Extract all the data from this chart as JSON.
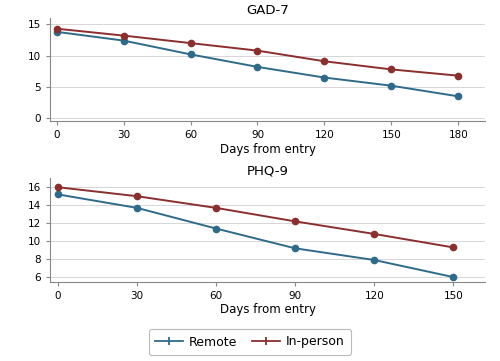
{
  "gad7": {
    "title": "GAD-7",
    "xlabel": "Days from entry",
    "remote_x": [
      0,
      30,
      60,
      90,
      120,
      150,
      180
    ],
    "remote_y": [
      13.8,
      12.4,
      10.2,
      8.2,
      6.5,
      5.2,
      3.5
    ],
    "inperson_x": [
      0,
      30,
      60,
      90,
      120,
      150,
      180
    ],
    "inperson_y": [
      14.3,
      13.2,
      12.0,
      10.8,
      9.1,
      7.8,
      6.8
    ],
    "ylim": [
      -0.5,
      16
    ],
    "yticks": [
      0,
      5,
      10,
      15
    ],
    "xlim": [
      -3,
      192
    ],
    "xticks": [
      0,
      30,
      60,
      90,
      120,
      150,
      180
    ]
  },
  "phq9": {
    "title": "PHQ-9",
    "xlabel": "Days from entry",
    "remote_x": [
      0,
      30,
      60,
      90,
      120,
      150
    ],
    "remote_y": [
      15.2,
      13.7,
      11.4,
      9.2,
      7.9,
      6.0
    ],
    "inperson_x": [
      0,
      30,
      60,
      90,
      120,
      150
    ],
    "inperson_y": [
      16.0,
      15.0,
      13.7,
      12.2,
      10.8,
      9.3
    ],
    "ylim": [
      5.5,
      17
    ],
    "yticks": [
      6,
      8,
      10,
      12,
      14,
      16
    ],
    "xlim": [
      -3,
      162
    ],
    "xticks": [
      0,
      30,
      60,
      90,
      120,
      150
    ]
  },
  "remote_color": "#2e6b8a",
  "inperson_color": "#8b2e2e",
  "linewidth": 1.4,
  "markersize": 4.5,
  "legend_labels": [
    "Remote",
    "In-person"
  ],
  "background_color": "#ffffff",
  "grid_color": "#d0d0d0",
  "spine_color": "#888888"
}
